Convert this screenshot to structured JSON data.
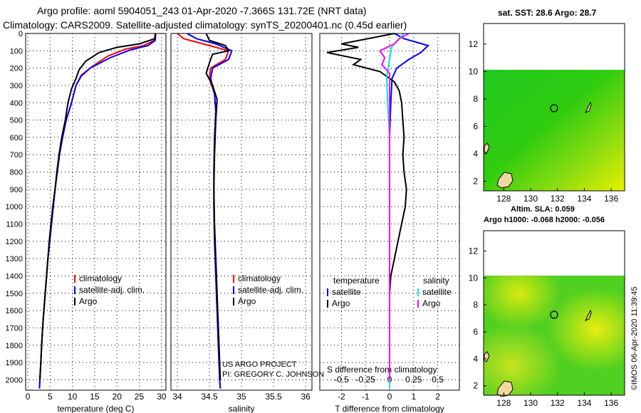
{
  "header": {
    "title_line1": "Argo profile: aoml 5904051_243 01-Apr-2020 -7.366S 131.72E (NRT data)",
    "title_line2": "Climatology: CARS2009. Satellite-adjusted climatology: synTS_20200401.nc (0.45d earlier)"
  },
  "credits": {
    "line1": "US ARGO PROJECT",
    "line2": "PI: GREGORY C. JOHNSON",
    "stamp": "©IMOS 06-Apr-2020 11:39:45"
  },
  "colors": {
    "climatology": "#ff0000",
    "satellite": "#0000ff",
    "argo": "#000000",
    "sat_salinity": "#00e5e5",
    "argo_salinity": "#ff00ff"
  },
  "chart_data": [
    {
      "id": "temperature",
      "type": "line",
      "xlabel": "temperature (deg C)",
      "ylabel": "",
      "xlim": [
        -0.5,
        31
      ],
      "ylim": [
        2060,
        0
      ],
      "xticks": [
        0,
        5,
        10,
        15,
        20,
        25,
        30
      ],
      "xtick_labels": [
        "0",
        "5",
        "10",
        "15",
        "20",
        "25",
        "30"
      ],
      "yticks": [
        0,
        100,
        200,
        300,
        400,
        500,
        600,
        700,
        800,
        900,
        1000,
        1100,
        1200,
        1300,
        1400,
        1500,
        1600,
        1700,
        1800,
        1900,
        2000
      ],
      "legend": [
        "climatology",
        "satellite-adj. clim.",
        "Argo"
      ],
      "series": [
        {
          "name": "climatology",
          "color": "#ff0000",
          "points": [
            [
              28.6,
              0
            ],
            [
              28.4,
              40
            ],
            [
              26,
              70
            ],
            [
              22,
              90
            ],
            [
              18,
              130
            ],
            [
              14.5,
              190
            ],
            [
              12,
              240
            ],
            [
              10.8,
              300
            ],
            [
              9.8,
              400
            ],
            [
              8.6,
              500
            ],
            [
              7.8,
              600
            ],
            [
              7.1,
              700
            ],
            [
              6.6,
              800
            ],
            [
              6.1,
              900
            ],
            [
              5.7,
              1000
            ],
            [
              5.3,
              1100
            ],
            [
              4.9,
              1200
            ],
            [
              4.5,
              1300
            ],
            [
              4.2,
              1400
            ],
            [
              3.9,
              1500
            ],
            [
              3.6,
              1600
            ],
            [
              3.3,
              1700
            ],
            [
              3.1,
              1800
            ],
            [
              2.9,
              1900
            ],
            [
              2.7,
              2000
            ],
            [
              2.6,
              2050
            ]
          ]
        },
        {
          "name": "satellite-adj. clim.",
          "color": "#0000ff",
          "points": [
            [
              28.7,
              0
            ],
            [
              28.6,
              40
            ],
            [
              27,
              70
            ],
            [
              23,
              95
            ],
            [
              18.5,
              140
            ],
            [
              14,
              200
            ],
            [
              12,
              245
            ],
            [
              10.8,
              300
            ],
            [
              9.8,
              400
            ],
            [
              8.6,
              500
            ],
            [
              7.8,
              600
            ],
            [
              7.1,
              700
            ],
            [
              6.6,
              800
            ],
            [
              6.1,
              900
            ],
            [
              5.7,
              1000
            ],
            [
              5.3,
              1100
            ],
            [
              4.9,
              1200
            ],
            [
              4.5,
              1300
            ],
            [
              4.2,
              1400
            ],
            [
              3.9,
              1500
            ],
            [
              3.6,
              1600
            ],
            [
              3.3,
              1700
            ],
            [
              3.1,
              1800
            ],
            [
              2.9,
              1900
            ],
            [
              2.7,
              2000
            ],
            [
              2.6,
              2050
            ]
          ]
        },
        {
          "name": "Argo",
          "color": "#000000",
          "points": [
            [
              28.7,
              0
            ],
            [
              28.5,
              30
            ],
            [
              25,
              60
            ],
            [
              20,
              80
            ],
            [
              16,
              110
            ],
            [
              13,
              160
            ],
            [
              11.5,
              210
            ],
            [
              10.8,
              260
            ],
            [
              9.8,
              320
            ],
            [
              9,
              400
            ],
            [
              8.4,
              500
            ],
            [
              7.6,
              600
            ],
            [
              7,
              700
            ],
            [
              6.5,
              800
            ],
            [
              6.1,
              900
            ],
            [
              5.6,
              1000
            ],
            [
              5.2,
              1100
            ],
            [
              4.8,
              1200
            ],
            [
              4.5,
              1300
            ],
            [
              4.2,
              1400
            ],
            [
              3.9,
              1500
            ],
            [
              3.6,
              1600
            ],
            [
              3.3,
              1700
            ],
            [
              3.1,
              1800
            ],
            [
              2.9,
              1900
            ],
            [
              2.7,
              2000
            ]
          ]
        }
      ]
    },
    {
      "id": "salinity",
      "type": "line",
      "xlabel": "salinity",
      "xlim": [
        33.9,
        36.1
      ],
      "ylim": [
        2060,
        0
      ],
      "xticks": [
        34,
        34.5,
        35,
        35.5,
        36
      ],
      "xtick_labels": [
        "34",
        "34.5",
        "35",
        "35.5",
        "36"
      ],
      "legend": [
        "climatology",
        "satellite-adj. clim.",
        "Argo"
      ],
      "series": [
        {
          "name": "climatology",
          "color": "#ff0000",
          "points": [
            [
              34.0,
              0
            ],
            [
              34.1,
              30
            ],
            [
              34.5,
              70
            ],
            [
              34.8,
              100
            ],
            [
              34.75,
              150
            ],
            [
              34.52,
              200
            ],
            [
              34.5,
              260
            ],
            [
              34.58,
              350
            ],
            [
              34.6,
              450
            ],
            [
              34.58,
              600
            ],
            [
              34.57,
              800
            ],
            [
              34.57,
              1000
            ],
            [
              34.58,
              1200
            ],
            [
              34.6,
              1400
            ],
            [
              34.62,
              1600
            ],
            [
              34.64,
              1800
            ],
            [
              34.66,
              2000
            ],
            [
              34.67,
              2050
            ]
          ]
        },
        {
          "name": "satellite-adj. clim.",
          "color": "#0000ff",
          "points": [
            [
              34.15,
              0
            ],
            [
              34.3,
              30
            ],
            [
              34.6,
              60
            ],
            [
              34.85,
              100
            ],
            [
              34.8,
              150
            ],
            [
              34.55,
              200
            ],
            [
              34.52,
              260
            ],
            [
              34.58,
              350
            ],
            [
              34.6,
              450
            ],
            [
              34.58,
              600
            ],
            [
              34.57,
              800
            ],
            [
              34.57,
              1000
            ],
            [
              34.58,
              1200
            ],
            [
              34.6,
              1400
            ],
            [
              34.62,
              1600
            ],
            [
              34.64,
              1800
            ],
            [
              34.66,
              2000
            ],
            [
              34.67,
              2050
            ]
          ]
        },
        {
          "name": "Argo",
          "color": "#000000",
          "points": [
            [
              34.45,
              0
            ],
            [
              34.5,
              40
            ],
            [
              34.75,
              70
            ],
            [
              34.8,
              100
            ],
            [
              34.55,
              120
            ],
            [
              34.5,
              170
            ],
            [
              34.45,
              230
            ],
            [
              34.55,
              300
            ],
            [
              34.62,
              380
            ],
            [
              34.6,
              500
            ],
            [
              34.58,
              700
            ],
            [
              34.57,
              900
            ],
            [
              34.58,
              1100
            ],
            [
              34.6,
              1300
            ],
            [
              34.62,
              1500
            ],
            [
              34.64,
              1700
            ],
            [
              34.66,
              1900
            ],
            [
              34.67,
              2000
            ]
          ]
        }
      ]
    },
    {
      "id": "difference",
      "type": "line",
      "xlabel": "T difference from climatology",
      "x2label": "S difference from climatology",
      "xlim": [
        -2.9,
        2.9
      ],
      "ylim": [
        2060,
        0
      ],
      "xticks": [
        -2,
        -1,
        0,
        1,
        2
      ],
      "xtick_labels": [
        "-2",
        "-1",
        "0",
        "1",
        "2"
      ],
      "x2ticks": [
        -0.5,
        -0.25,
        0,
        0.25,
        0.5
      ],
      "x2tick_labels": [
        "-0.5",
        "-0.25",
        "0",
        "0.25",
        "0.5"
      ],
      "x2lim": [
        -0.725,
        0.725
      ],
      "legend_temperature_title": "temperature",
      "legend_salinity_title": "salinity",
      "legend": [
        "satellite",
        "Argo",
        "satellite",
        "Argo"
      ],
      "series": [
        {
          "name": "T satellite",
          "color": "#0000ff",
          "points": [
            [
              0.2,
              0
            ],
            [
              0.6,
              30
            ],
            [
              1.6,
              70
            ],
            [
              1.3,
              110
            ],
            [
              0.8,
              150
            ],
            [
              0.3,
              200
            ],
            [
              0.1,
              260
            ],
            [
              0.05,
              400
            ],
            [
              0,
              600
            ],
            [
              0,
              2050
            ]
          ]
        },
        {
          "name": "T Argo",
          "color": "#000000",
          "points": [
            [
              0.2,
              0
            ],
            [
              -2.0,
              60
            ],
            [
              -1.3,
              80
            ],
            [
              -2.6,
              110
            ],
            [
              -1.2,
              150
            ],
            [
              -1.5,
              180
            ],
            [
              -0.4,
              220
            ],
            [
              0.2,
              280
            ],
            [
              0.4,
              330
            ],
            [
              0.5,
              400
            ],
            [
              0.55,
              500
            ],
            [
              0.6,
              600
            ],
            [
              0.55,
              700
            ],
            [
              0.6,
              800
            ],
            [
              0.7,
              900
            ],
            [
              0.65,
              1000
            ],
            [
              0.5,
              1100
            ],
            [
              0.35,
              1200
            ],
            [
              0.2,
              1300
            ],
            [
              0.05,
              1400
            ],
            [
              0,
              1500
            ],
            [
              0,
              2000
            ]
          ]
        },
        {
          "name": "S satellite",
          "color": "#00e5e5",
          "points": [
            [
              0.15,
              0
            ],
            [
              0.08,
              40
            ],
            [
              0.02,
              80
            ],
            [
              0.0,
              150
            ],
            [
              -0.03,
              250
            ],
            [
              -0.02,
              400
            ],
            [
              0,
              600
            ],
            [
              0,
              2050
            ]
          ]
        },
        {
          "name": "S Argo",
          "color": "#ff00ff",
          "points": [
            [
              0.2,
              0
            ],
            [
              0.1,
              30
            ],
            [
              0.05,
              60
            ],
            [
              -0.1,
              100
            ],
            [
              -0.05,
              140
            ],
            [
              -0.08,
              180
            ],
            [
              0.0,
              230
            ],
            [
              0.0,
              2000
            ]
          ]
        }
      ]
    },
    {
      "id": "sst_map",
      "type": "heatmap",
      "title": "sat. SST: 28.6 Argo: 28.7",
      "xticks": [
        128,
        130,
        132,
        134,
        136
      ],
      "xtick_labels": [
        "128",
        "130",
        "132",
        "134",
        "136"
      ],
      "yticks": [
        2,
        4,
        6,
        8,
        10,
        12
      ],
      "ytick_labels": [
        "2",
        "4",
        "6",
        "8",
        "10",
        "12"
      ],
      "xlim": [
        126.5,
        137
      ],
      "ylim": [
        1.3,
        13.5
      ],
      "data_top": 10,
      "argo_position": [
        131.7,
        7.4
      ]
    },
    {
      "id": "sla_map",
      "type": "heatmap",
      "title": "Altim. SLA: 0.059",
      "subtitle": "Argo h1000: -0.068 h2000: -0.056",
      "xticks": [
        128,
        130,
        132,
        134,
        136
      ],
      "xtick_labels": [
        "128",
        "130",
        "132",
        "134",
        "136"
      ],
      "yticks": [
        2,
        4,
        6,
        8,
        10,
        12
      ],
      "ytick_labels": [
        "2",
        "4",
        "6",
        "8",
        "10",
        "12"
      ],
      "xlim": [
        126.5,
        137
      ],
      "ylim": [
        1.3,
        13.5
      ],
      "data_top": 10,
      "argo_position": [
        131.7,
        7.4
      ]
    }
  ]
}
